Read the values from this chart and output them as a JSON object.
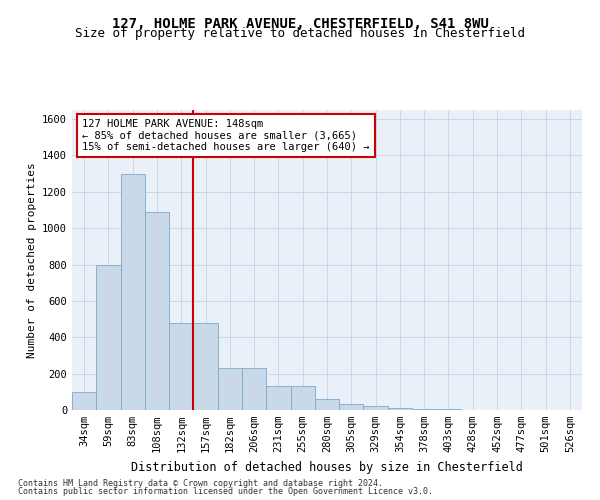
{
  "title": "127, HOLME PARK AVENUE, CHESTERFIELD, S41 8WU",
  "subtitle": "Size of property relative to detached houses in Chesterfield",
  "xlabel": "Distribution of detached houses by size in Chesterfield",
  "ylabel": "Number of detached properties",
  "footnote1": "Contains HM Land Registry data © Crown copyright and database right 2024.",
  "footnote2": "Contains public sector information licensed under the Open Government Licence v3.0.",
  "annotation_line1": "127 HOLME PARK AVENUE: 148sqm",
  "annotation_line2": "← 85% of detached houses are smaller (3,665)",
  "annotation_line3": "15% of semi-detached houses are larger (640) →",
  "bar_color": "#c9d9ea",
  "bar_edge_color": "#7aaac8",
  "vline_color": "#cc0000",
  "categories": [
    "34sqm",
    "59sqm",
    "83sqm",
    "108sqm",
    "132sqm",
    "157sqm",
    "182sqm",
    "206sqm",
    "231sqm",
    "255sqm",
    "280sqm",
    "305sqm",
    "329sqm",
    "354sqm",
    "378sqm",
    "403sqm",
    "428sqm",
    "452sqm",
    "477sqm",
    "501sqm",
    "526sqm"
  ],
  "values": [
    100,
    800,
    1300,
    1090,
    480,
    480,
    230,
    230,
    130,
    130,
    60,
    35,
    20,
    10,
    5,
    5,
    2,
    2,
    2,
    2,
    2
  ],
  "vline_index": 4.5,
  "ylim": [
    0,
    1650
  ],
  "yticks": [
    0,
    200,
    400,
    600,
    800,
    1000,
    1200,
    1400,
    1600
  ],
  "grid_color": "#ccd6e8",
  "bg_color": "#eaf0f8",
  "title_fontsize": 10,
  "subtitle_fontsize": 9,
  "tick_fontsize": 7.5,
  "ylabel_fontsize": 8,
  "xlabel_fontsize": 8.5,
  "annotation_fontsize": 7.5,
  "footnote_fontsize": 6,
  "annotation_box_color": "#ffffff",
  "annotation_box_edge": "#cc0000"
}
